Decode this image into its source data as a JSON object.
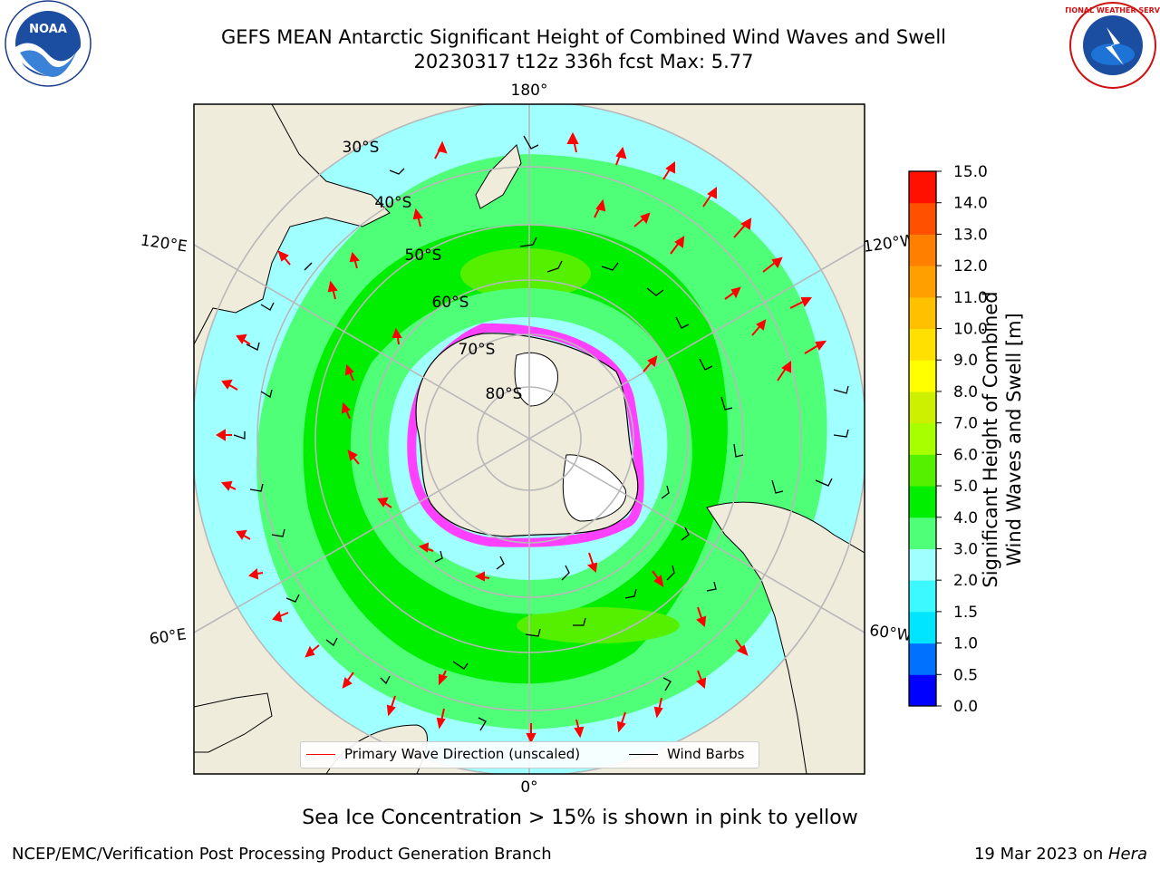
{
  "title": {
    "line1": "GEFS MEAN Antarctic Significant Height of Combined Wind Waves and Swell",
    "line2": "20230317 t12z 336h fcst   Max: 5.77"
  },
  "logos": {
    "left": {
      "icon": "noaa-logo",
      "text": "NOAA"
    },
    "right": {
      "icon": "nws-logo",
      "text": "NATIONAL WEATHER SERVICE"
    }
  },
  "map": {
    "projection": "south-polar-stereographic",
    "meridian_labels": [
      "180°",
      "120°E",
      "120°W",
      "60°E",
      "60°W",
      "0°"
    ],
    "latitude_labels": [
      "30°S",
      "40°S",
      "50°S",
      "60°S",
      "70°S",
      "80°S"
    ],
    "colors": {
      "land": "#efecdc",
      "grid": "#b8b8b8",
      "wave_arrow": "#ff0000",
      "wind_barb": "#000000",
      "sea_ice": "#ff40ff"
    }
  },
  "legend": {
    "wave": {
      "label": "Primary Wave Direction (unscaled)",
      "color": "#ff0000"
    },
    "wind": {
      "label": "Wind Barbs",
      "color": "#000000"
    }
  },
  "colorbar": {
    "label_line1": "Significant Height of Combined",
    "label_line2": "Wind Waves and Swell [m]",
    "ticks": [
      "0.0",
      "0.5",
      "1.0",
      "1.5",
      "2.0",
      "3.0",
      "4.0",
      "5.0",
      "6.0",
      "7.0",
      "8.0",
      "9.0",
      "10.0",
      "11.0",
      "12.0",
      "13.0",
      "14.0",
      "15.0"
    ],
    "colors": [
      "#0000ff",
      "#0070ff",
      "#00e5ff",
      "#3cf8ff",
      "#a0ffff",
      "#50ff78",
      "#00ee00",
      "#55f000",
      "#a8ff00",
      "#ccf000",
      "#ffff00",
      "#ffe000",
      "#ffc000",
      "#ffa000",
      "#ff8000",
      "#ff5000",
      "#ff1000"
    ]
  },
  "subtitle": "Sea Ice Concentration > 15% is shown in pink to yellow",
  "footer": {
    "left": "NCEP/EMC/Verification Post Processing Product Generation Branch",
    "right_prefix": "19 Mar 2023 on ",
    "right_host": "Hera"
  }
}
